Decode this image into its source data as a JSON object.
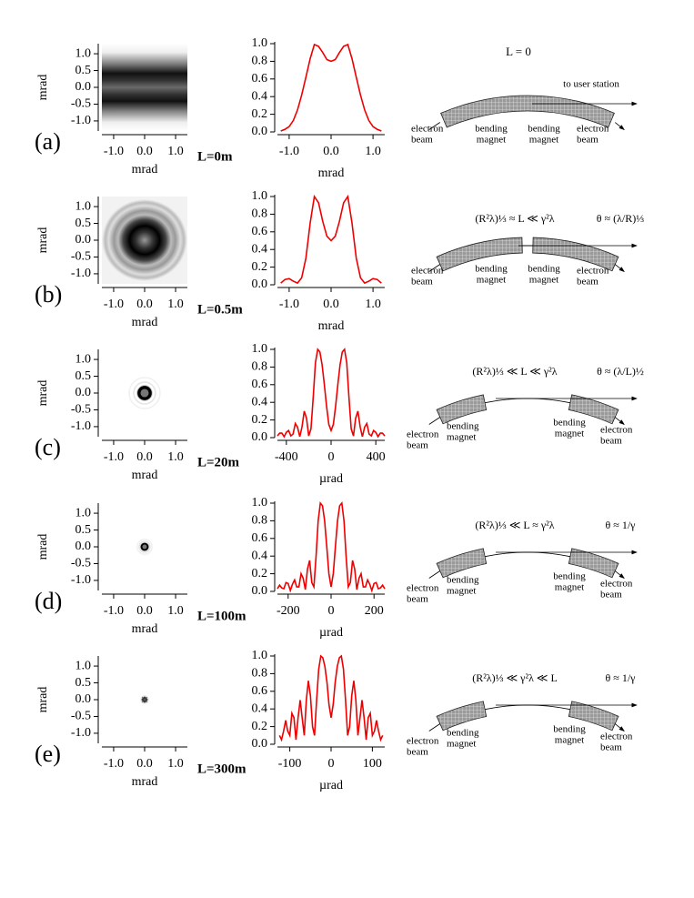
{
  "chart_data": [
    {
      "type": "line",
      "xlabel": "mrad",
      "x": [
        -1.2,
        -1.1,
        -1.0,
        -0.9,
        -0.8,
        -0.7,
        -0.6,
        -0.5,
        -0.4,
        -0.3,
        -0.2,
        -0.1,
        0,
        0.1,
        0.2,
        0.3,
        0.4,
        0.5,
        0.6,
        0.7,
        0.8,
        0.9,
        1.0,
        1.1,
        1.2
      ],
      "series": [
        {
          "color": "#ee0000",
          "values": [
            0.01,
            0.03,
            0.06,
            0.13,
            0.25,
            0.42,
            0.62,
            0.83,
            0.99,
            0.97,
            0.9,
            0.82,
            0.8,
            0.82,
            0.9,
            0.97,
            0.99,
            0.83,
            0.62,
            0.42,
            0.25,
            0.13,
            0.06,
            0.03,
            0.01
          ]
        }
      ],
      "xlim": [
        -1.28,
        1.28
      ],
      "ylim": [
        0,
        1
      ],
      "xticks": [
        {
          "value": -1,
          "label": "-1.0"
        },
        {
          "value": 0,
          "label": "0.0"
        },
        {
          "value": 1,
          "label": "1.0"
        }
      ],
      "yticks": [
        {
          "value": 0,
          "label": "0.0"
        },
        0.2,
        0.4,
        0.6,
        0.8,
        {
          "value": 1,
          "label": "1.0"
        }
      ]
    },
    {
      "type": "line",
      "xlabel": "mrad",
      "x": [
        -1.2,
        -1.1,
        -1.0,
        -0.9,
        -0.8,
        -0.7,
        -0.6,
        -0.5,
        -0.4,
        -0.3,
        -0.2,
        -0.1,
        0,
        0.1,
        0.2,
        0.3,
        0.4,
        0.5,
        0.6,
        0.7,
        0.8,
        0.9,
        1.0,
        1.1,
        1.2
      ],
      "series": [
        {
          "color": "#ee0000",
          "values": [
            0.02,
            0.06,
            0.07,
            0.04,
            0.02,
            0.08,
            0.3,
            0.7,
            1.0,
            0.93,
            0.72,
            0.55,
            0.5,
            0.55,
            0.72,
            0.93,
            1.0,
            0.7,
            0.3,
            0.08,
            0.02,
            0.04,
            0.07,
            0.06,
            0.02
          ]
        }
      ],
      "xlim": [
        -1.28,
        1.28
      ],
      "ylim": [
        0,
        1
      ],
      "xticks": [
        {
          "value": -1,
          "label": "-1.0"
        },
        {
          "value": 0,
          "label": "0.0"
        },
        {
          "value": 1,
          "label": "1.0"
        }
      ],
      "yticks": [
        {
          "value": 0,
          "label": "0.0"
        },
        0.2,
        0.4,
        0.6,
        0.8,
        {
          "value": 1,
          "label": "1.0"
        }
      ]
    },
    {
      "type": "line",
      "xlabel": "µrad",
      "x": [
        -480,
        -460,
        -440,
        -420,
        -400,
        -380,
        -360,
        -340,
        -320,
        -300,
        -280,
        -260,
        -240,
        -220,
        -200,
        -180,
        -160,
        -140,
        -120,
        -100,
        -80,
        -60,
        -40,
        -20,
        0,
        20,
        40,
        60,
        80,
        100,
        120,
        140,
        160,
        180,
        200,
        220,
        240,
        260,
        280,
        300,
        320,
        340,
        360,
        380,
        400,
        420,
        440,
        460,
        480
      ],
      "series": [
        {
          "color": "#ee0000",
          "values": [
            0.02,
            0.05,
            0.05,
            0.01,
            0.06,
            0.08,
            0.02,
            0.04,
            0.16,
            0.12,
            0.01,
            0.12,
            0.3,
            0.22,
            0.02,
            0.1,
            0.45,
            0.85,
            1.0,
            0.97,
            0.82,
            0.6,
            0.35,
            0.15,
            0.08,
            0.15,
            0.35,
            0.6,
            0.82,
            0.97,
            1.0,
            0.85,
            0.45,
            0.1,
            0.02,
            0.22,
            0.3,
            0.12,
            0.01,
            0.12,
            0.16,
            0.04,
            0.02,
            0.08,
            0.06,
            0.01,
            0.05,
            0.05,
            0.02
          ]
        }
      ],
      "xlim": [
        -480,
        480
      ],
      "ylim": [
        0,
        1
      ],
      "xticks": [
        -400,
        0,
        400
      ],
      "yticks": [
        {
          "value": 0,
          "label": "0.0"
        },
        0.2,
        0.4,
        0.6,
        0.8,
        {
          "value": 1,
          "label": "1.0"
        }
      ]
    },
    {
      "type": "line",
      "xlabel": "µrad",
      "x": [
        -250,
        -240,
        -230,
        -220,
        -210,
        -200,
        -190,
        -180,
        -170,
        -160,
        -150,
        -140,
        -130,
        -120,
        -110,
        -100,
        -90,
        -80,
        -70,
        -60,
        -50,
        -40,
        -30,
        -20,
        -10,
        0,
        10,
        20,
        30,
        40,
        50,
        60,
        70,
        80,
        90,
        100,
        110,
        120,
        130,
        140,
        150,
        160,
        170,
        180,
        190,
        200,
        210,
        220,
        230,
        240,
        250
      ],
      "series": [
        {
          "color": "#ee0000",
          "values": [
            0.03,
            0.07,
            0.04,
            0.03,
            0.1,
            0.09,
            0.01,
            0.08,
            0.13,
            0.05,
            0.05,
            0.2,
            0.15,
            0.02,
            0.25,
            0.35,
            0.1,
            0.05,
            0.4,
            0.8,
            1.0,
            0.97,
            0.8,
            0.5,
            0.2,
            0.05,
            0.2,
            0.5,
            0.8,
            0.97,
            1.0,
            0.8,
            0.4,
            0.05,
            0.1,
            0.35,
            0.25,
            0.02,
            0.15,
            0.2,
            0.05,
            0.05,
            0.13,
            0.08,
            0.01,
            0.09,
            0.1,
            0.03,
            0.04,
            0.07,
            0.03
          ]
        }
      ],
      "xlim": [
        -250,
        250
      ],
      "ylim": [
        0,
        1
      ],
      "xticks": [
        -200,
        0,
        200
      ],
      "yticks": [
        {
          "value": 0,
          "label": "0.0"
        },
        0.2,
        0.4,
        0.6,
        0.8,
        {
          "value": 1,
          "label": "1.0"
        }
      ]
    },
    {
      "type": "line",
      "xlabel": "µrad",
      "x": [
        -125,
        -120,
        -115,
        -110,
        -105,
        -100,
        -95,
        -90,
        -85,
        -80,
        -75,
        -70,
        -65,
        -60,
        -55,
        -50,
        -45,
        -40,
        -35,
        -30,
        -25,
        -20,
        -15,
        -10,
        -5,
        0,
        5,
        10,
        15,
        20,
        25,
        30,
        35,
        40,
        45,
        50,
        55,
        60,
        65,
        70,
        75,
        80,
        85,
        90,
        95,
        100,
        105,
        110,
        115,
        120,
        125
      ],
      "series": [
        {
          "color": "#ee0000",
          "values": [
            0.1,
            0.05,
            0.15,
            0.27,
            0.15,
            0.1,
            0.35,
            0.3,
            0.05,
            0.3,
            0.5,
            0.3,
            0.1,
            0.5,
            0.72,
            0.55,
            0.2,
            0.1,
            0.5,
            0.85,
            1.0,
            0.98,
            0.88,
            0.7,
            0.45,
            0.3,
            0.45,
            0.7,
            0.88,
            0.98,
            1.0,
            0.85,
            0.5,
            0.1,
            0.2,
            0.55,
            0.72,
            0.5,
            0.1,
            0.3,
            0.5,
            0.3,
            0.05,
            0.3,
            0.35,
            0.1,
            0.15,
            0.27,
            0.15,
            0.05,
            0.1
          ]
        }
      ],
      "xlim": [
        -130,
        130
      ],
      "ylim": [
        0,
        1
      ],
      "xticks": [
        -100,
        0,
        100
      ],
      "yticks": [
        {
          "value": 0,
          "label": "0.0"
        },
        0.2,
        0.4,
        0.6,
        0.8,
        {
          "value": 1,
          "label": "1.0"
        }
      ]
    }
  ],
  "rows": [
    {
      "label": "(a)",
      "distance": "L=0m",
      "image": {
        "xlabel": "mrad",
        "ylabel": "mrad",
        "xlim": [
          -1.38,
          1.38
        ],
        "ylim": [
          -1.3,
          1.3
        ],
        "xticks": [
          {
            "value": -1,
            "label": "-1.0"
          },
          {
            "value": 0,
            "label": "0.0"
          },
          {
            "value": 1,
            "label": "1.0"
          }
        ],
        "yticks": [
          {
            "value": 1,
            "label": "1.0"
          },
          0.5,
          {
            "value": 0,
            "label": "0.0"
          },
          -0.5,
          {
            "value": -1,
            "label": "-1.0"
          }
        ]
      },
      "diagram": {
        "formula": "L = 0",
        "station": "to user station",
        "beam_in": [
          "electron",
          "beam"
        ],
        "magnet_left": [
          "bending",
          "magnet"
        ],
        "magnet_right": [
          "bending",
          "magnet"
        ],
        "beam_out": [
          "electron",
          "beam"
        ]
      }
    },
    {
      "label": "(b)",
      "distance": "L=0.5m",
      "image": {
        "xlabel": "mrad",
        "ylabel": "mrad",
        "xlim": [
          -1.38,
          1.38
        ],
        "ylim": [
          -1.3,
          1.3
        ],
        "xticks": [
          {
            "value": -1,
            "label": "-1.0"
          },
          {
            "value": 0,
            "label": "0.0"
          },
          {
            "value": 1,
            "label": "1.0"
          }
        ],
        "yticks": [
          {
            "value": 1,
            "label": "1.0"
          },
          0.5,
          {
            "value": 0,
            "label": "0.0"
          },
          -0.5,
          {
            "value": -1,
            "label": "-1.0"
          }
        ]
      },
      "diagram": {
        "formula": "(R²λ)⅓ ≈ L ≪ γ²λ",
        "angle": "θ ≈ (λ/R)⅓",
        "beam_in": [
          "electron",
          "beam"
        ],
        "magnet_left": [
          "bending",
          "magnet"
        ],
        "magnet_right": [
          "bending",
          "magnet"
        ],
        "beam_out": [
          "electron",
          "beam"
        ]
      }
    },
    {
      "label": "(c)",
      "distance": "L=20m",
      "image": {
        "xlabel": "mrad",
        "ylabel": "mrad",
        "xlim": [
          -1.38,
          1.38
        ],
        "ylim": [
          -1.3,
          1.3
        ],
        "xticks": [
          {
            "value": -1,
            "label": "-1.0"
          },
          {
            "value": 0,
            "label": "0.0"
          },
          {
            "value": 1,
            "label": "1.0"
          }
        ],
        "yticks": [
          {
            "value": 1,
            "label": "1.0"
          },
          0.5,
          {
            "value": 0,
            "label": "0.0"
          },
          -0.5,
          {
            "value": -1,
            "label": "-1.0"
          }
        ]
      },
      "diagram": {
        "formula": "(R²λ)⅓ ≪ L ≪ γ²λ",
        "angle": "θ ≈ (λ/L)½",
        "beam_in": [
          "electron",
          "beam"
        ],
        "magnet_left": [
          "bending",
          "magnet"
        ],
        "magnet_right": [
          "bending",
          "magnet"
        ],
        "beam_out": [
          "electron",
          "beam"
        ]
      }
    },
    {
      "label": "(d)",
      "distance": "L=100m",
      "image": {
        "xlabel": "mrad",
        "ylabel": "mrad",
        "xlim": [
          -1.38,
          1.38
        ],
        "ylim": [
          -1.3,
          1.3
        ],
        "xticks": [
          {
            "value": -1,
            "label": "-1.0"
          },
          {
            "value": 0,
            "label": "0.0"
          },
          {
            "value": 1,
            "label": "1.0"
          }
        ],
        "yticks": [
          {
            "value": 1,
            "label": "1.0"
          },
          0.5,
          {
            "value": 0,
            "label": "0.0"
          },
          -0.5,
          {
            "value": -1,
            "label": "-1.0"
          }
        ]
      },
      "diagram": {
        "formula": "(R²λ)⅓ ≪ L ≈ γ²λ",
        "angle": "θ ≈ 1/γ",
        "beam_in": [
          "electron",
          "beam"
        ],
        "magnet_left": [
          "bending",
          "magnet"
        ],
        "magnet_right": [
          "bending",
          "magnet"
        ],
        "beam_out": [
          "electron",
          "beam"
        ]
      }
    },
    {
      "label": "(e)",
      "distance": "L=300m",
      "image": {
        "xlabel": "mrad",
        "ylabel": "mrad",
        "xlim": [
          -1.38,
          1.38
        ],
        "ylim": [
          -1.3,
          1.3
        ],
        "xticks": [
          {
            "value": -1,
            "label": "-1.0"
          },
          {
            "value": 0,
            "label": "0.0"
          },
          {
            "value": 1,
            "label": "1.0"
          }
        ],
        "yticks": [
          {
            "value": 1,
            "label": "1.0"
          },
          0.5,
          {
            "value": 0,
            "label": "0.0"
          },
          -0.5,
          {
            "value": -1,
            "label": "-1.0"
          }
        ]
      },
      "diagram": {
        "formula": "(R²λ)⅓ ≪ γ²λ ≪ L",
        "angle": "θ ≈ 1/γ",
        "beam_in": [
          "electron",
          "beam"
        ],
        "magnet_left": [
          "bending",
          "magnet"
        ],
        "magnet_right": [
          "bending",
          "magnet"
        ],
        "beam_out": [
          "electron",
          "beam"
        ]
      }
    }
  ]
}
